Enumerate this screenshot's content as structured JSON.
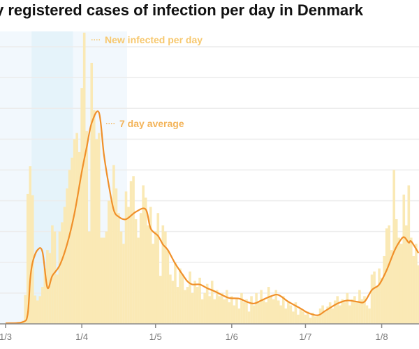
{
  "chart_data": {
    "type": "bar",
    "title": "y registered cases of infection per day in Denmark",
    "xlabel": "",
    "ylabel": "",
    "ylim": [
      0,
      475
    ],
    "grid": true,
    "y_gridlines": [
      50,
      100,
      150,
      200,
      250,
      300,
      350,
      400,
      450
    ],
    "x_ticks": [
      "1/3",
      "1/4",
      "1/5",
      "1/6",
      "1/7",
      "1/8"
    ],
    "colors": {
      "bars": "#fae9b5",
      "line": "#f0902a",
      "label_bars": "#f7c86e",
      "label_line": "#f3b45a",
      "shade_light": "#f2f8fd",
      "shade_dark": "#e5f3fa",
      "grid": "#ececec",
      "axis": "#8a8a8a"
    },
    "shaded_periods": [
      {
        "start": null,
        "end": "19/4",
        "shade": "light"
      },
      {
        "start": "12/3",
        "end": "28/3",
        "shade": "dark"
      }
    ],
    "dates": [
      "1/3",
      "2/3",
      "3/3",
      "4/3",
      "5/3",
      "6/3",
      "7/3",
      "8/3",
      "9/3",
      "10/3",
      "11/3",
      "12/3",
      "13/3",
      "14/3",
      "15/3",
      "16/3",
      "17/3",
      "18/3",
      "19/3",
      "20/3",
      "21/3",
      "22/3",
      "23/3",
      "24/3",
      "25/3",
      "26/3",
      "27/3",
      "28/3",
      "29/3",
      "30/3",
      "31/3",
      "1/4",
      "2/4",
      "3/4",
      "4/4",
      "5/4",
      "6/4",
      "7/4",
      "8/4",
      "9/4",
      "10/4",
      "11/4",
      "12/4",
      "13/4",
      "14/4",
      "15/4",
      "16/4",
      "17/4",
      "18/4",
      "19/4",
      "20/4",
      "21/4",
      "22/4",
      "23/4",
      "24/4",
      "25/4",
      "26/4",
      "27/4",
      "28/4",
      "29/4",
      "30/4",
      "1/5",
      "2/5",
      "3/5",
      "4/5",
      "5/5",
      "6/5",
      "7/5",
      "8/5",
      "9/5",
      "10/5",
      "11/5",
      "12/5",
      "13/5",
      "14/5",
      "15/5",
      "16/5",
      "17/5",
      "18/5",
      "19/5",
      "20/5",
      "21/5",
      "22/5",
      "23/5",
      "24/5",
      "25/5",
      "26/5",
      "27/5",
      "28/5",
      "29/5",
      "30/5",
      "31/5",
      "1/6",
      "2/6",
      "3/6",
      "4/6",
      "5/6",
      "6/6",
      "7/6",
      "8/6",
      "9/6",
      "10/6",
      "11/6",
      "12/6",
      "13/6",
      "14/6",
      "15/6",
      "16/6",
      "17/6",
      "18/6",
      "19/6",
      "20/6",
      "21/6",
      "22/6",
      "23/6",
      "24/6",
      "25/6",
      "26/6",
      "27/6",
      "28/6",
      "29/6",
      "30/6",
      "1/7",
      "2/7",
      "3/7",
      "4/7",
      "5/7",
      "6/7",
      "7/7",
      "8/7",
      "9/7",
      "10/7",
      "11/7",
      "12/7",
      "13/7",
      "14/7",
      "15/7",
      "16/7",
      "17/7",
      "18/7",
      "19/7",
      "20/7",
      "21/7",
      "22/7",
      "23/7",
      "24/7",
      "25/7",
      "26/7",
      "27/7",
      "28/7",
      "29/7",
      "30/7",
      "31/7",
      "1/8",
      "2/8",
      "3/8",
      "4/8",
      "5/8",
      "6/8",
      "7/8",
      "8/8",
      "9/8",
      "10/8",
      "11/8",
      "12/8",
      "13/8",
      "14/8",
      "15/8",
      "16/8"
    ],
    "series": [
      {
        "name": "New infected per day",
        "type": "bar",
        "values": [
          0,
          0,
          0,
          1,
          2,
          3,
          3,
          5,
          47,
          211,
          256,
          209,
          46,
          38,
          45,
          60,
          90,
          120,
          115,
          160,
          150,
          80,
          150,
          165,
          190,
          220,
          250,
          270,
          300,
          310,
          279,
          383,
          473,
          313,
          150,
          424,
          347,
          300,
          310,
          140,
          140,
          150,
          200,
          200,
          258,
          220,
          180,
          150,
          130,
          215,
          190,
          232,
          240,
          170,
          140,
          180,
          225,
          205,
          160,
          190,
          130,
          150,
          180,
          78,
          160,
          150,
          120,
          80,
          70,
          100,
          60,
          90,
          80,
          55,
          60,
          85,
          50,
          70,
          60,
          75,
          40,
          50,
          65,
          45,
          70,
          40,
          55,
          45,
          50,
          40,
          55,
          35,
          45,
          30,
          40,
          25,
          50,
          35,
          40,
          20,
          45,
          30,
          50,
          35,
          55,
          40,
          35,
          60,
          45,
          40,
          55,
          38,
          30,
          45,
          25,
          35,
          30,
          20,
          35,
          15,
          25,
          20,
          15,
          20,
          10,
          18,
          12,
          15,
          25,
          30,
          20,
          28,
          35,
          25,
          38,
          45,
          30,
          40,
          35,
          50,
          30,
          40,
          45,
          35,
          55,
          40,
          45,
          30,
          25,
          80,
          85,
          60,
          90,
          75,
          110,
          155,
          160,
          120,
          250,
          170,
          140,
          130,
          210,
          160,
          225,
          140,
          110,
          130,
          95
        ]
      },
      {
        "name": "7 day average",
        "type": "line",
        "points": [
          [
            "1/3",
            1
          ],
          [
            "8/3",
            3
          ],
          [
            "10/3",
            16
          ],
          [
            "11/3",
            72
          ],
          [
            "12/3",
            100
          ],
          [
            "14/3",
            120
          ],
          [
            "16/3",
            117
          ],
          [
            "18/3",
            59
          ],
          [
            "20/3",
            78
          ],
          [
            "23/3",
            95
          ],
          [
            "26/3",
            129
          ],
          [
            "29/3",
            179
          ],
          [
            "1/4",
            247
          ],
          [
            "3/4",
            287
          ],
          [
            "5/4",
            326
          ],
          [
            "8/4",
            343
          ],
          [
            "10/4",
            275
          ],
          [
            "12/4",
            225
          ],
          [
            "14/4",
            185
          ],
          [
            "16/4",
            174
          ],
          [
            "19/4",
            170
          ],
          [
            "23/4",
            182
          ],
          [
            "27/4",
            186
          ],
          [
            "29/4",
            155
          ],
          [
            "2/5",
            143
          ],
          [
            "4/5",
            129
          ],
          [
            "6/5",
            120
          ],
          [
            "9/5",
            98
          ],
          [
            "12/5",
            80
          ],
          [
            "14/5",
            69
          ],
          [
            "16/5",
            64
          ],
          [
            "19/5",
            64
          ],
          [
            "22/5",
            58
          ],
          [
            "25/5",
            53
          ],
          [
            "28/5",
            47
          ],
          [
            "31/5",
            42
          ],
          [
            "4/6",
            41
          ],
          [
            "7/6",
            36
          ],
          [
            "10/6",
            33
          ],
          [
            "13/6",
            38
          ],
          [
            "17/6",
            45
          ],
          [
            "20/6",
            47
          ],
          [
            "24/6",
            36
          ],
          [
            "29/6",
            25
          ],
          [
            "2/7",
            18
          ],
          [
            "6/7",
            14
          ],
          [
            "9/7",
            21
          ],
          [
            "14/7",
            33
          ],
          [
            "18/7",
            38
          ],
          [
            "22/7",
            36
          ],
          [
            "25/7",
            36
          ],
          [
            "28/7",
            55
          ],
          [
            "31/7",
            64
          ],
          [
            "3/8",
            87
          ],
          [
            "6/8",
            117
          ],
          [
            "8/8",
            132
          ],
          [
            "10/8",
            141
          ],
          [
            "12/8",
            132
          ],
          [
            "13/8",
            134
          ],
          [
            "16/8",
            115
          ]
        ]
      }
    ],
    "legend": {
      "bars_label": "New infected per day",
      "line_label": "7 day average",
      "placement": "inline"
    }
  }
}
